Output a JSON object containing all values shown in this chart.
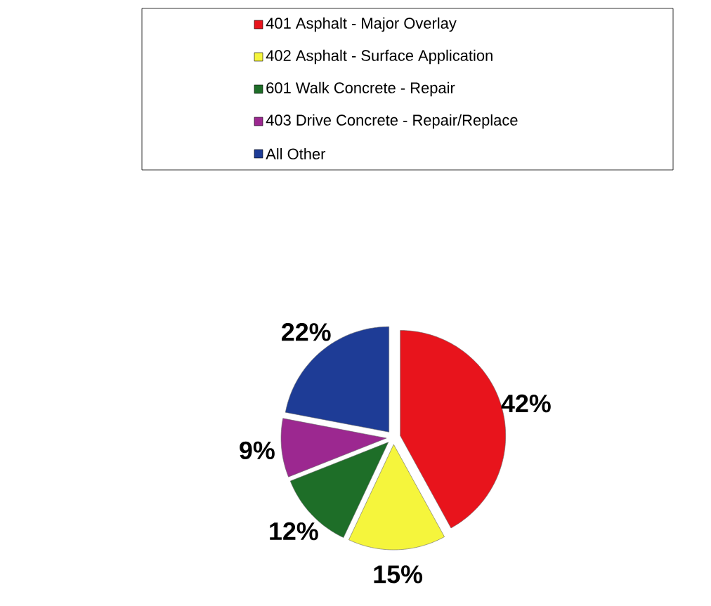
{
  "chart_data": {
    "type": "pie",
    "categories": [
      "401 Asphalt - Major Overlay",
      "402 Asphalt - Surface Application",
      "601 Walk Concrete - Repair",
      "403 Drive Concrete - Repair/Replace",
      "All Other"
    ],
    "values": [
      42,
      15,
      12,
      9,
      22
    ],
    "colors": [
      "#e8141c",
      "#f5f53c",
      "#1e6e28",
      "#9c2890",
      "#1e3c96"
    ],
    "value_labels": [
      "42%",
      "15%",
      "12%",
      "9%",
      "22%"
    ],
    "legend": "top"
  }
}
